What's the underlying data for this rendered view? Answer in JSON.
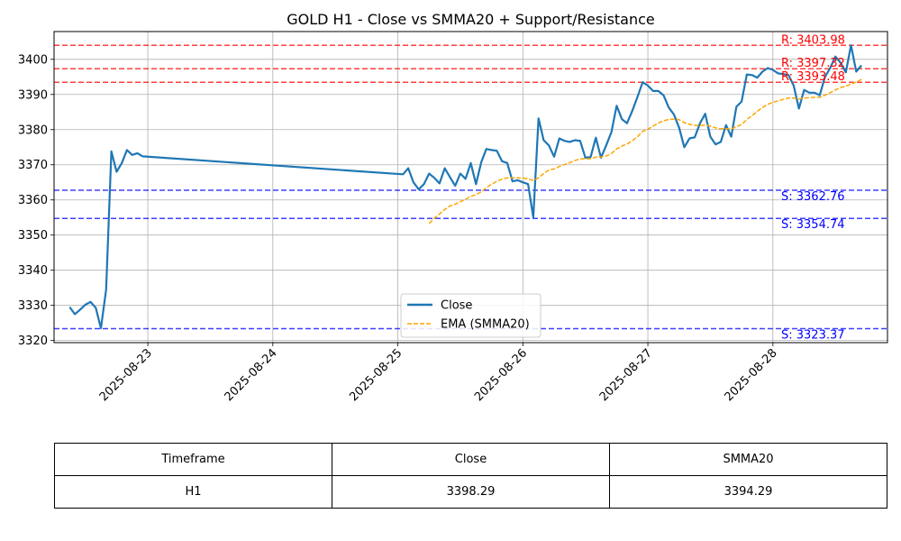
{
  "chart_data": {
    "type": "line",
    "title": "GOLD H1 - Close vs SMMA20 + Support/Resistance",
    "xlabel": "",
    "ylabel": "",
    "x_range": [
      "2025-08-22T06:00",
      "2025-08-28T22:00"
    ],
    "ylim": [
      3319.4,
      3407.9
    ],
    "y_ticks": [
      3320,
      3330,
      3340,
      3350,
      3360,
      3370,
      3380,
      3390,
      3400
    ],
    "x_ticks": [
      "2025-08-23",
      "2025-08-24",
      "2025-08-25",
      "2025-08-26",
      "2025-08-27",
      "2025-08-28"
    ],
    "grid": true,
    "legend": {
      "placement": "lower-center",
      "entries": [
        "Close",
        "EMA (SMMA20)"
      ]
    },
    "series": [
      {
        "name": "Close",
        "color": "#1f77b4",
        "style": "solid",
        "points": [
          [
            "2025-08-22T09:00",
            3329.5
          ],
          [
            "2025-08-22T10:00",
            3327.5
          ],
          [
            "2025-08-22T11:00",
            3328.8
          ],
          [
            "2025-08-22T12:00",
            3330.2
          ],
          [
            "2025-08-22T13:00",
            3331.0
          ],
          [
            "2025-08-22T14:00",
            3329.3
          ],
          [
            "2025-08-22T15:00",
            3323.5
          ],
          [
            "2025-08-22T16:00",
            3334.5
          ],
          [
            "2025-08-22T17:00",
            3373.8
          ],
          [
            "2025-08-22T18:00",
            3368.0
          ],
          [
            "2025-08-22T19:00",
            3370.5
          ],
          [
            "2025-08-22T20:00",
            3374.2
          ],
          [
            "2025-08-22T21:00",
            3372.8
          ],
          [
            "2025-08-22T22:00",
            3373.3
          ],
          [
            "2025-08-22T23:00",
            3372.4
          ],
          [
            "2025-08-25T01:00",
            3367.3
          ],
          [
            "2025-08-25T02:00",
            3369.0
          ],
          [
            "2025-08-25T03:00",
            3365.0
          ],
          [
            "2025-08-25T04:00",
            3363.0
          ],
          [
            "2025-08-25T05:00",
            3364.5
          ],
          [
            "2025-08-25T06:00",
            3367.5
          ],
          [
            "2025-08-25T07:00",
            3366.3
          ],
          [
            "2025-08-25T08:00",
            3364.7
          ],
          [
            "2025-08-25T09:00",
            3369.0
          ],
          [
            "2025-08-25T10:00",
            3366.5
          ],
          [
            "2025-08-25T11:00",
            3364.0
          ],
          [
            "2025-08-25T12:00",
            3367.5
          ],
          [
            "2025-08-25T13:00",
            3366.0
          ],
          [
            "2025-08-25T14:00",
            3370.5
          ],
          [
            "2025-08-25T15:00",
            3364.5
          ],
          [
            "2025-08-25T16:00",
            3370.7
          ],
          [
            "2025-08-25T17:00",
            3374.5
          ],
          [
            "2025-08-25T18:00",
            3374.2
          ],
          [
            "2025-08-25T19:00",
            3374.0
          ],
          [
            "2025-08-25T20:00",
            3371.0
          ],
          [
            "2025-08-25T21:00",
            3370.5
          ],
          [
            "2025-08-25T22:00",
            3365.3
          ],
          [
            "2025-08-25T23:00",
            3365.6
          ],
          [
            "2025-08-26T00:00",
            3365.0
          ],
          [
            "2025-08-26T01:00",
            3364.5
          ],
          [
            "2025-08-26T02:00",
            3355.0
          ],
          [
            "2025-08-26T03:00",
            3383.2
          ],
          [
            "2025-08-26T04:00",
            3377.0
          ],
          [
            "2025-08-26T05:00",
            3375.5
          ],
          [
            "2025-08-26T06:00",
            3372.3
          ],
          [
            "2025-08-26T07:00",
            3377.5
          ],
          [
            "2025-08-26T08:00",
            3376.8
          ],
          [
            "2025-08-26T09:00",
            3376.5
          ],
          [
            "2025-08-26T10:00",
            3377.0
          ],
          [
            "2025-08-26T11:00",
            3376.8
          ],
          [
            "2025-08-26T12:00",
            3372.0
          ],
          [
            "2025-08-26T13:00",
            3372.2
          ],
          [
            "2025-08-26T14:00",
            3377.7
          ],
          [
            "2025-08-26T15:00",
            3372.0
          ],
          [
            "2025-08-26T16:00",
            3375.5
          ],
          [
            "2025-08-26T17:00",
            3379.3
          ],
          [
            "2025-08-26T18:00",
            3386.8
          ],
          [
            "2025-08-26T19:00",
            3383.0
          ],
          [
            "2025-08-26T20:00",
            3381.8
          ],
          [
            "2025-08-26T21:00",
            3385.3
          ],
          [
            "2025-08-26T22:00",
            3389.3
          ],
          [
            "2025-08-26T23:00",
            3393.5
          ],
          [
            "2025-08-27T00:00",
            3392.5
          ],
          [
            "2025-08-27T01:00",
            3391.0
          ],
          [
            "2025-08-27T02:00",
            3391.0
          ],
          [
            "2025-08-27T03:00",
            3389.8
          ],
          [
            "2025-08-27T04:00",
            3386.3
          ],
          [
            "2025-08-27T05:00",
            3384.3
          ],
          [
            "2025-08-27T06:00",
            3380.5
          ],
          [
            "2025-08-27T07:00",
            3375.0
          ],
          [
            "2025-08-27T08:00",
            3377.5
          ],
          [
            "2025-08-27T09:00",
            3377.8
          ],
          [
            "2025-08-27T10:00",
            3381.8
          ],
          [
            "2025-08-27T11:00",
            3384.5
          ],
          [
            "2025-08-27T12:00",
            3378.0
          ],
          [
            "2025-08-27T13:00",
            3375.8
          ],
          [
            "2025-08-27T14:00",
            3376.5
          ],
          [
            "2025-08-27T15:00",
            3381.3
          ],
          [
            "2025-08-27T16:00",
            3378.0
          ],
          [
            "2025-08-27T17:00",
            3386.5
          ],
          [
            "2025-08-27T18:00",
            3388.0
          ],
          [
            "2025-08-27T19:00",
            3395.7
          ],
          [
            "2025-08-27T20:00",
            3395.5
          ],
          [
            "2025-08-27T21:00",
            3394.8
          ],
          [
            "2025-08-27T22:00",
            3396.5
          ],
          [
            "2025-08-27T23:00",
            3397.5
          ],
          [
            "2025-08-28T00:00",
            3397.0
          ],
          [
            "2025-08-28T01:00",
            3396.0
          ],
          [
            "2025-08-28T02:00",
            3395.8
          ],
          [
            "2025-08-28T03:00",
            3395.5
          ],
          [
            "2025-08-28T04:00",
            3392.5
          ],
          [
            "2025-08-28T05:00",
            3386.0
          ],
          [
            "2025-08-28T06:00",
            3391.3
          ],
          [
            "2025-08-28T07:00",
            3390.5
          ],
          [
            "2025-08-28T08:00",
            3390.5
          ],
          [
            "2025-08-28T09:00",
            3389.8
          ],
          [
            "2025-08-28T10:00",
            3395.0
          ],
          [
            "2025-08-28T11:00",
            3397.5
          ],
          [
            "2025-08-28T12:00",
            3400.8
          ],
          [
            "2025-08-28T13:00",
            3399.0
          ],
          [
            "2025-08-28T14:00",
            3396.3
          ],
          [
            "2025-08-28T15:00",
            3404.0
          ],
          [
            "2025-08-28T16:00",
            3396.5
          ],
          [
            "2025-08-28T17:00",
            3398.3
          ]
        ]
      },
      {
        "name": "EMA (SMMA20)",
        "color": "#ffa500",
        "style": "dashed",
        "points": [
          [
            "2025-08-25T06:00",
            3353.3
          ],
          [
            "2025-08-25T07:00",
            3354.8
          ],
          [
            "2025-08-25T08:00",
            3356.0
          ],
          [
            "2025-08-25T09:00",
            3357.3
          ],
          [
            "2025-08-25T10:00",
            3358.3
          ],
          [
            "2025-08-25T11:00",
            3358.8
          ],
          [
            "2025-08-25T12:00",
            3359.5
          ],
          [
            "2025-08-25T13:00",
            3360.2
          ],
          [
            "2025-08-25T14:00",
            3361.0
          ],
          [
            "2025-08-25T15:00",
            3361.5
          ],
          [
            "2025-08-25T16:00",
            3362.3
          ],
          [
            "2025-08-25T17:00",
            3363.5
          ],
          [
            "2025-08-25T18:00",
            3364.5
          ],
          [
            "2025-08-25T19:00",
            3365.3
          ],
          [
            "2025-08-25T20:00",
            3365.9
          ],
          [
            "2025-08-25T21:00",
            3366.3
          ],
          [
            "2025-08-25T22:00",
            3366.3
          ],
          [
            "2025-08-25T23:00",
            3366.3
          ],
          [
            "2025-08-26T00:00",
            3366.2
          ],
          [
            "2025-08-26T01:00",
            3366.0
          ],
          [
            "2025-08-26T02:00",
            3365.5
          ],
          [
            "2025-08-26T03:00",
            3366.3
          ],
          [
            "2025-08-26T04:00",
            3367.5
          ],
          [
            "2025-08-26T05:00",
            3368.5
          ],
          [
            "2025-08-26T06:00",
            3368.8
          ],
          [
            "2025-08-26T07:00",
            3369.5
          ],
          [
            "2025-08-26T08:00",
            3370.1
          ],
          [
            "2025-08-26T09:00",
            3370.6
          ],
          [
            "2025-08-26T10:00",
            3371.2
          ],
          [
            "2025-08-26T11:00",
            3371.7
          ],
          [
            "2025-08-26T12:00",
            3371.7
          ],
          [
            "2025-08-26T13:00",
            3371.7
          ],
          [
            "2025-08-26T14:00",
            3372.2
          ],
          [
            "2025-08-26T15:00",
            3372.2
          ],
          [
            "2025-08-26T16:00",
            3372.5
          ],
          [
            "2025-08-26T17:00",
            3373.2
          ],
          [
            "2025-08-26T18:00",
            3374.5
          ],
          [
            "2025-08-26T19:00",
            3375.3
          ],
          [
            "2025-08-26T20:00",
            3375.9
          ],
          [
            "2025-08-26T21:00",
            3376.8
          ],
          [
            "2025-08-26T22:00",
            3378.0
          ],
          [
            "2025-08-26T23:00",
            3379.5
          ],
          [
            "2025-08-27T00:00",
            3380.1
          ],
          [
            "2025-08-27T01:00",
            3381.0
          ],
          [
            "2025-08-27T02:00",
            3381.9
          ],
          [
            "2025-08-27T03:00",
            3382.5
          ],
          [
            "2025-08-27T04:00",
            3382.9
          ],
          [
            "2025-08-27T05:00",
            3383.0
          ],
          [
            "2025-08-27T06:00",
            3382.8
          ],
          [
            "2025-08-27T07:00",
            3382.0
          ],
          [
            "2025-08-27T08:00",
            3381.5
          ],
          [
            "2025-08-27T09:00",
            3381.2
          ],
          [
            "2025-08-27T10:00",
            3381.2
          ],
          [
            "2025-08-27T11:00",
            3381.3
          ],
          [
            "2025-08-27T12:00",
            3381.0
          ],
          [
            "2025-08-27T13:00",
            3380.5
          ],
          [
            "2025-08-27T14:00",
            3380.2
          ],
          [
            "2025-08-27T15:00",
            3380.3
          ],
          [
            "2025-08-27T16:00",
            3380.2
          ],
          [
            "2025-08-27T17:00",
            3380.8
          ],
          [
            "2025-08-27T18:00",
            3381.5
          ],
          [
            "2025-08-27T19:00",
            3382.9
          ],
          [
            "2025-08-27T20:00",
            3384.0
          ],
          [
            "2025-08-27T21:00",
            3385.2
          ],
          [
            "2025-08-27T22:00",
            3386.3
          ],
          [
            "2025-08-27T23:00",
            3387.2
          ],
          [
            "2025-08-28T00:00",
            3387.8
          ],
          [
            "2025-08-28T01:00",
            3388.2
          ],
          [
            "2025-08-28T02:00",
            3388.6
          ],
          [
            "2025-08-28T03:00",
            3389.0
          ],
          [
            "2025-08-28T04:00",
            3389.0
          ],
          [
            "2025-08-28T05:00",
            3388.7
          ],
          [
            "2025-08-28T06:00",
            3389.0
          ],
          [
            "2025-08-28T07:00",
            3389.1
          ],
          [
            "2025-08-28T08:00",
            3389.2
          ],
          [
            "2025-08-28T09:00",
            3389.2
          ],
          [
            "2025-08-28T10:00",
            3389.8
          ],
          [
            "2025-08-28T11:00",
            3390.5
          ],
          [
            "2025-08-28T12:00",
            3391.3
          ],
          [
            "2025-08-28T13:00",
            3392.0
          ],
          [
            "2025-08-28T14:00",
            3392.3
          ],
          [
            "2025-08-28T15:00",
            3393.0
          ],
          [
            "2025-08-28T16:00",
            3393.5
          ],
          [
            "2025-08-28T17:00",
            3394.3
          ]
        ]
      }
    ],
    "resistance_levels": [
      {
        "value": 3403.98,
        "label": "R: 3403.98"
      },
      {
        "value": 3397.32,
        "label": "R: 3397.32"
      },
      {
        "value": 3393.48,
        "label": "R: 3393.48"
      }
    ],
    "support_levels": [
      {
        "value": 3362.76,
        "label": "S: 3362.76"
      },
      {
        "value": 3354.74,
        "label": "S: 3354.74"
      },
      {
        "value": 3323.37,
        "label": "S: 3323.37"
      }
    ],
    "colors": {
      "resistance": "#ff0000",
      "support": "#0000ff",
      "grid": "#b0b0b0",
      "axes": "#000000"
    }
  },
  "table": {
    "headers": [
      "Timeframe",
      "Close",
      "SMMA20"
    ],
    "rows": [
      [
        "H1",
        "3398.29",
        "3394.29"
      ]
    ]
  }
}
